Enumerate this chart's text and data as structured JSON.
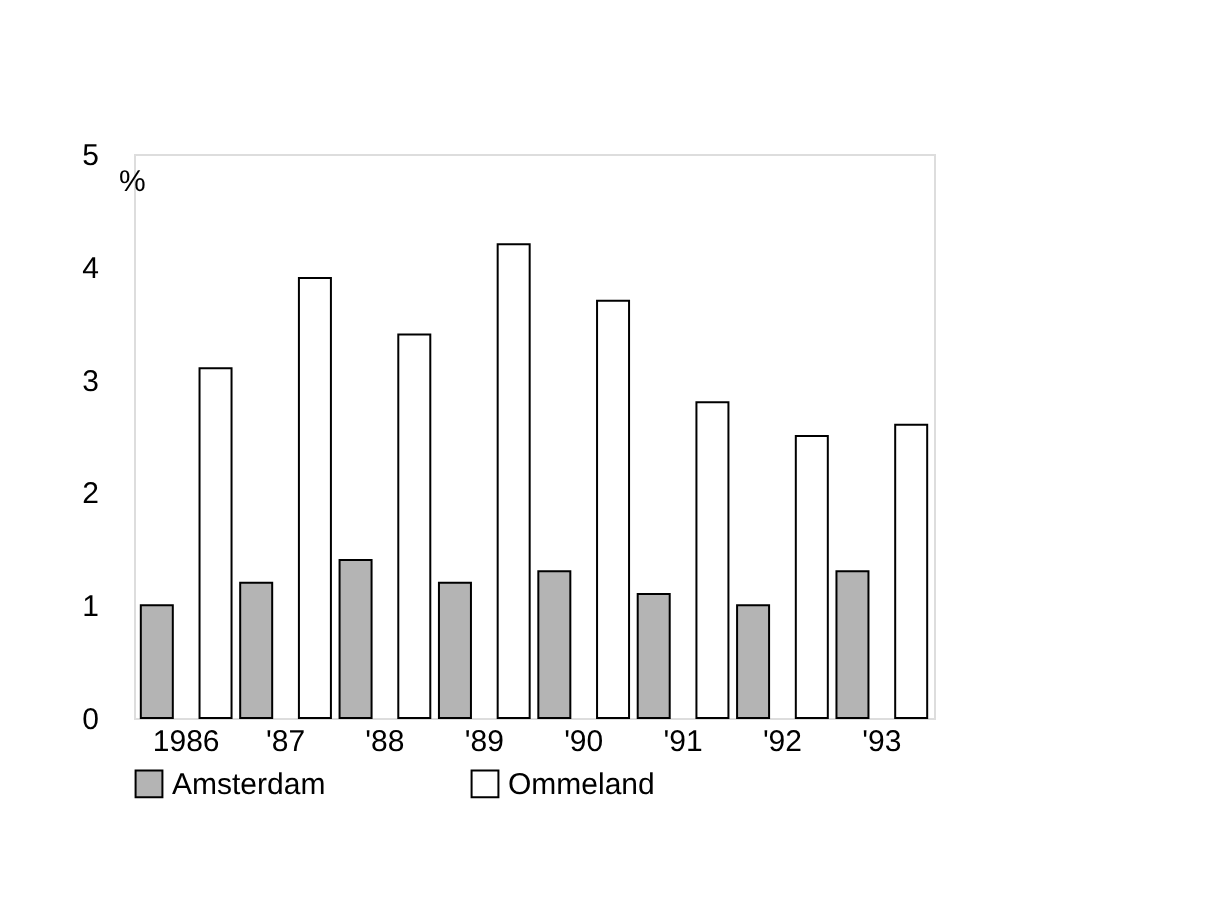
{
  "chart_data": {
    "type": "bar",
    "ylabel": "%",
    "categories": [
      "1986",
      "'87",
      "'88",
      "'89",
      "'90",
      "'91",
      "'92",
      "'93"
    ],
    "series": [
      {
        "name": "Amsterdam",
        "color": "#b4b4b4",
        "values": [
          1.0,
          1.2,
          1.4,
          1.2,
          1.3,
          1.1,
          1.0,
          1.3
        ]
      },
      {
        "name": "Ommeland",
        "color": "#ffffff",
        "values": [
          3.1,
          3.9,
          3.4,
          4.2,
          3.7,
          2.8,
          2.5,
          2.6
        ]
      }
    ],
    "ylim": [
      0,
      5
    ],
    "yticks": [
      0,
      1,
      2,
      3,
      4,
      5
    ],
    "grid": false,
    "legend": "bottom"
  }
}
